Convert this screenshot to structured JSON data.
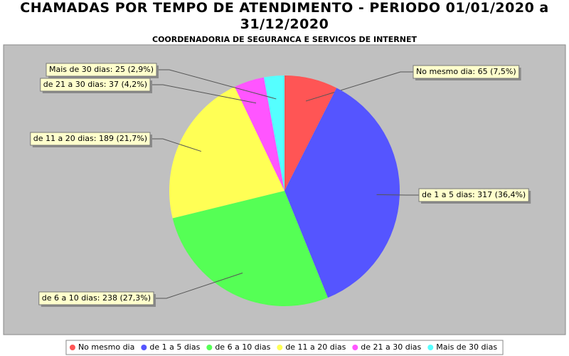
{
  "chart_data": {
    "type": "pie",
    "title": "CHAMADAS POR TEMPO DE ATENDIMENTO - PERIODO 01/01/2020 a 31/12/2020",
    "subtitle": "COORDENADORIA DE SEGURANCA E SERVICOS DE INTERNET",
    "categories": [
      "No mesmo dia",
      "de 1 a 5 dias",
      "de 6 a 10 dias",
      "de 11 a 20 dias",
      "de 21 a 30 dias",
      "Mais de 30 dias"
    ],
    "values": [
      65,
      317,
      238,
      189,
      37,
      25
    ],
    "value_labels": [
      "No mesmo dia: 65 (7,5%)",
      "de 1 a 5 dias: 317 (36,4%)",
      "de 6 a 10 dias: 238 (27,3%)",
      "de 11 a 20 dias: 189 (21,7%)",
      "de 21 a 30 dias: 37 (4,2%)",
      "Mais de 30 dias: 25 (2,9%)"
    ],
    "colors": [
      "#ff5555",
      "#5555ff",
      "#55ff55",
      "#ffff55",
      "#ff55ff",
      "#55ffff"
    ],
    "legend": "bottom"
  }
}
